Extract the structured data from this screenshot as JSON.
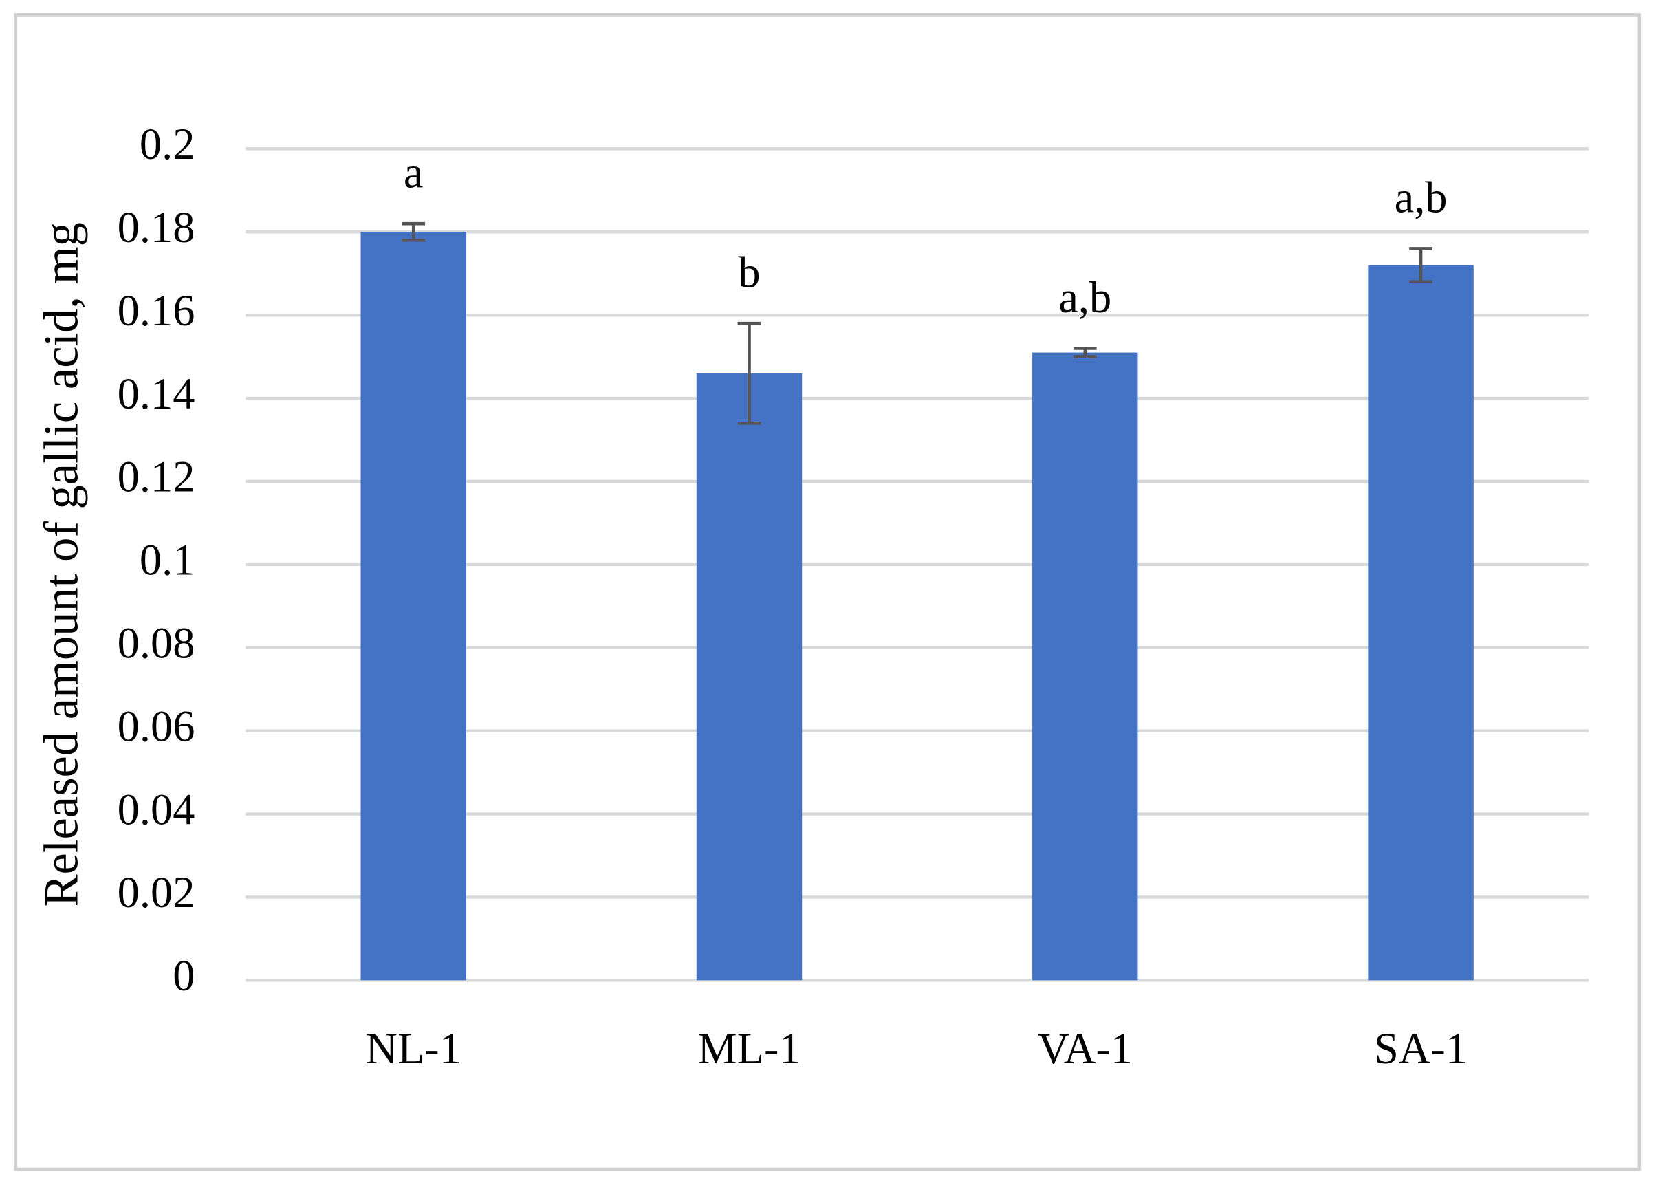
{
  "chart_data": {
    "type": "bar",
    "y_label": "Released amount of gallic acid, mg",
    "categories": [
      "NL-1",
      "ML-1",
      "VA-1",
      "SA-1"
    ],
    "values": [
      0.18,
      0.146,
      0.151,
      0.172
    ],
    "errors": [
      0.002,
      0.012,
      0.001,
      0.004
    ],
    "annotations": [
      "a",
      "b",
      "a,b",
      "a,b"
    ],
    "color": "#4472c4",
    "ylim": [
      0,
      0.2
    ],
    "yticks": [
      0,
      0.02,
      0.04,
      0.06,
      0.08,
      0.1,
      0.12,
      0.14,
      0.16,
      0.18,
      0.2
    ],
    "grid": true
  }
}
